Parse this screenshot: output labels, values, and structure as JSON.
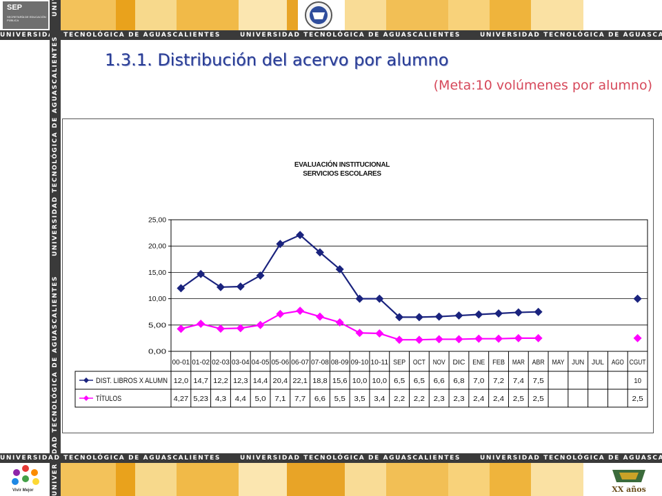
{
  "header": {
    "stripe_text": "UNIVERSIDAD TECNOLÓGICA DE AGUASCALIENTES",
    "sep_logo_text": "SEP",
    "sep_logo_subtext": "SECRETARÍA DE EDUCACIÓN PÚBLICA"
  },
  "slide": {
    "title": "1.3.1. Distribución del acervo por alumno",
    "subtitle": "(Meta:10 volúmenes por alumno)"
  },
  "footer": {
    "left_logo_text": "Vivir Mejor",
    "right_logo_text": "XX años"
  },
  "colors": {
    "series1": "#1a237e",
    "series2": "#ff00ff",
    "stripe": "#3a3a3a",
    "title": "#2a3d94",
    "subtitle": "#d6485a"
  },
  "chart_data": {
    "type": "line",
    "title_lines": [
      "EVALUACIÓN INSTITUCIONAL",
      "SERVICIOS ESCOLARES"
    ],
    "categories": [
      "00-01",
      "01-02",
      "02-03",
      "03-04",
      "04-05",
      "05-06",
      "06-07",
      "07-08",
      "08-09",
      "09-10",
      "10-11",
      "SEP",
      "OCT",
      "NOV",
      "DIC",
      "ENE",
      "FEB",
      "MAR",
      "ABR",
      "MAY",
      "JUN",
      "JUL",
      "AGO",
      "CGUT"
    ],
    "ylim": [
      0,
      25
    ],
    "yticks": [
      0,
      5,
      10,
      15,
      20,
      25
    ],
    "ytick_labels": [
      "0,00",
      "5,00",
      "10,00",
      "15,00",
      "20,00",
      "25,00"
    ],
    "grid": true,
    "legend": "data-table",
    "series": [
      {
        "name": "DIST. LIBROS X ALUMN",
        "values": [
          12.0,
          14.7,
          12.2,
          12.3,
          14.4,
          20.4,
          22.1,
          18.8,
          15.6,
          10.0,
          10.0,
          6.5,
          6.5,
          6.6,
          6.8,
          7.0,
          7.2,
          7.4,
          7.5,
          null,
          null,
          null,
          null,
          10
        ],
        "labels": [
          "12,0",
          "14,7",
          "12,2",
          "12,3",
          "14,4",
          "20,4",
          "22,1",
          "18,8",
          "15,6",
          "10,0",
          "10,0",
          "6,5",
          "6,5",
          "6,6",
          "6,8",
          "7,0",
          "7,2",
          "7,4",
          "7,5",
          "",
          "",
          "",
          "",
          "10"
        ]
      },
      {
        "name": "TÍTULOS",
        "values": [
          4.27,
          5.23,
          4.3,
          4.4,
          5.0,
          7.1,
          7.7,
          6.6,
          5.5,
          3.5,
          3.4,
          2.2,
          2.2,
          2.3,
          2.3,
          2.4,
          2.4,
          2.5,
          2.5,
          null,
          null,
          null,
          null,
          2.5
        ],
        "labels": [
          "4,27",
          "5,23",
          "4,3",
          "4,4",
          "5,0",
          "7,1",
          "7,7",
          "6,6",
          "5,5",
          "3,5",
          "3,4",
          "2,2",
          "2,2",
          "2,3",
          "2,3",
          "2,4",
          "2,4",
          "2,5",
          "2,5",
          "",
          "",
          "",
          "",
          "2,5"
        ]
      }
    ]
  }
}
